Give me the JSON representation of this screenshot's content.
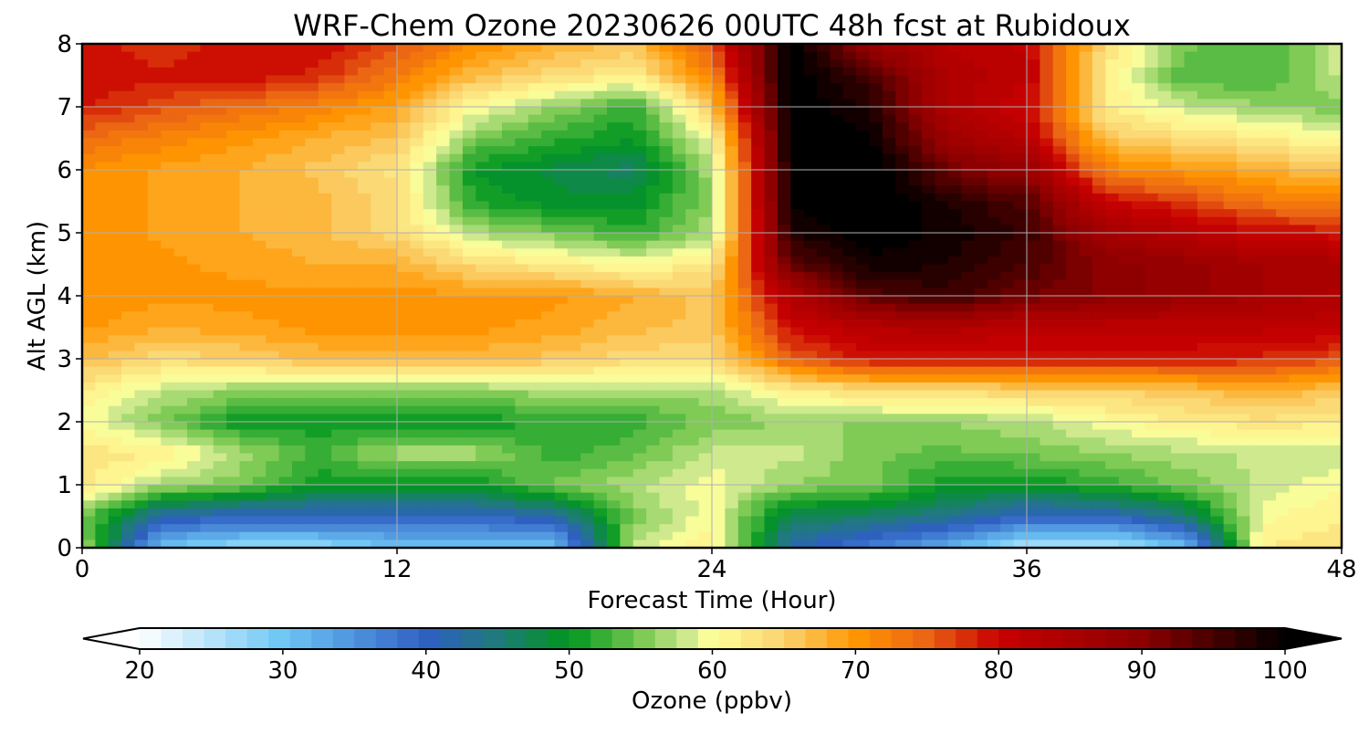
{
  "chart_data": {
    "type": "heatmap",
    "title": "WRF-Chem Ozone  20230626 00UTC 48h fcst at Rubidoux",
    "xlabel": "Forecast Time (Hour)",
    "ylabel": "Alt AGL (km)",
    "xlim": [
      0,
      48
    ],
    "ylim": [
      0,
      8
    ],
    "xticks": [
      0,
      12,
      24,
      36,
      48
    ],
    "yticks": [
      0,
      1,
      2,
      3,
      4,
      5,
      6,
      7,
      8
    ],
    "grid": true,
    "x": [
      0,
      3,
      6,
      9,
      12,
      15,
      18,
      21,
      24,
      27,
      30,
      33,
      36,
      39,
      42,
      45,
      48
    ],
    "y": [
      0,
      0.5,
      1,
      1.5,
      2,
      2.5,
      3,
      3.5,
      4,
      4.5,
      5,
      5.5,
      6,
      6.5,
      7,
      7.5,
      8
    ],
    "z": [
      [
        57,
        30,
        27,
        27,
        30,
        30,
        30,
        58,
        62,
        42,
        37,
        32,
        25,
        25,
        30,
        62,
        63
      ],
      [
        55,
        42,
        40,
        40,
        40,
        40,
        42,
        55,
        60,
        47,
        46,
        44,
        40,
        40,
        45,
        60,
        62
      ],
      [
        63,
        57,
        55,
        50,
        50,
        50,
        55,
        57,
        60,
        56,
        55,
        50,
        50,
        52,
        55,
        58,
        60
      ],
      [
        63,
        62,
        57,
        53,
        57,
        57,
        52,
        54,
        58,
        58,
        55,
        54,
        55,
        56,
        57,
        58,
        58
      ],
      [
        60,
        55,
        50,
        50,
        50,
        50,
        52,
        52,
        55,
        56,
        56,
        56,
        57,
        60,
        62,
        63,
        62
      ],
      [
        62,
        58,
        56,
        56,
        56,
        56,
        57,
        57,
        57,
        62,
        64,
        64,
        65,
        65,
        66,
        68,
        66
      ],
      [
        67,
        64,
        65,
        67,
        67,
        67,
        66,
        64,
        64,
        75,
        79,
        79,
        79,
        79,
        79,
        78,
        76
      ],
      [
        70,
        68,
        69,
        70,
        70,
        70,
        69,
        67,
        66,
        80,
        83,
        84,
        82,
        82,
        82,
        82,
        82
      ],
      [
        71,
        70,
        70,
        70,
        70,
        70,
        70,
        68,
        66,
        84,
        94,
        96,
        92,
        90,
        88,
        86,
        84
      ],
      [
        71,
        70,
        69,
        68,
        68,
        64,
        62,
        60,
        63,
        93,
        99,
        98,
        95,
        90,
        88,
        86,
        85
      ],
      [
        71,
        69,
        68,
        67,
        64,
        57,
        55,
        52,
        57,
        98,
        101,
        99,
        96,
        86,
        83,
        80,
        79
      ],
      [
        71,
        69,
        68,
        67,
        64,
        51,
        49,
        49,
        56,
        100,
        102,
        98,
        94,
        80,
        77,
        73,
        72
      ],
      [
        71,
        69,
        68,
        66,
        63,
        50,
        48,
        46,
        57,
        100,
        102,
        92,
        88,
        72,
        70,
        68,
        66
      ],
      [
        74,
        72,
        70,
        68,
        66,
        55,
        52,
        50,
        60,
        100,
        100,
        87,
        83,
        66,
        64,
        62,
        60
      ],
      [
        79,
        76,
        74,
        72,
        69,
        60,
        56,
        52,
        66,
        101,
        98,
        84,
        80,
        62,
        58,
        56,
        55
      ],
      [
        80,
        79,
        80,
        78,
        73,
        67,
        64,
        62,
        72,
        101,
        95,
        84,
        82,
        62,
        53,
        53,
        58
      ],
      [
        80,
        77,
        80,
        80,
        76,
        71,
        68,
        66,
        76,
        101,
        88,
        83,
        81,
        64,
        55,
        53,
        58
      ]
    ],
    "colorbar": {
      "label": "Ozone  (ppbv)",
      "ticks": [
        20,
        30,
        40,
        50,
        60,
        70,
        80,
        90,
        100
      ],
      "min": 20,
      "max": 100,
      "extend": "both",
      "position": "bottom",
      "stops": [
        {
          "v": 20,
          "c": "#ffffff"
        },
        {
          "v": 30,
          "c": "#6ec7f5"
        },
        {
          "v": 40,
          "c": "#2f5fc4"
        },
        {
          "v": 45,
          "c": "#1e7a7a"
        },
        {
          "v": 50,
          "c": "#00961e"
        },
        {
          "v": 55,
          "c": "#78c850"
        },
        {
          "v": 58,
          "c": "#c8e68c"
        },
        {
          "v": 60,
          "c": "#ffff9b"
        },
        {
          "v": 65,
          "c": "#fad26e"
        },
        {
          "v": 70,
          "c": "#ff9600"
        },
        {
          "v": 75,
          "c": "#eb6414"
        },
        {
          "v": 80,
          "c": "#c80000"
        },
        {
          "v": 90,
          "c": "#8c0000"
        },
        {
          "v": 100,
          "c": "#000000"
        }
      ]
    }
  }
}
